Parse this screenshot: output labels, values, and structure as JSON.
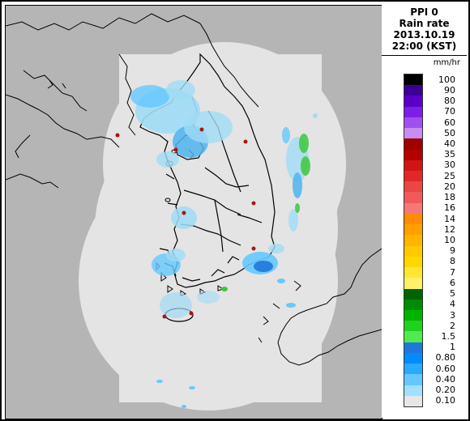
{
  "header": {
    "line1": "PPI 0",
    "line2": "Rain rate",
    "line3": "2013.10.19",
    "line4": "22:00 (KST)"
  },
  "legend": {
    "unit": "mm/hr",
    "levels": [
      {
        "label": "100",
        "color": "#000000"
      },
      {
        "label": "90",
        "color": "#3c0096"
      },
      {
        "label": "80",
        "color": "#5a00c8"
      },
      {
        "label": "70",
        "color": "#7d1ee6"
      },
      {
        "label": "60",
        "color": "#a050f0"
      },
      {
        "label": "50",
        "color": "#c88cf5"
      },
      {
        "label": "40",
        "color": "#a00000"
      },
      {
        "label": "35",
        "color": "#b40000"
      },
      {
        "label": "30",
        "color": "#d21414"
      },
      {
        "label": "25",
        "color": "#e12828"
      },
      {
        "label": "20",
        "color": "#eb4646"
      },
      {
        "label": "18",
        "color": "#f05a5a"
      },
      {
        "label": "16",
        "color": "#f57878"
      },
      {
        "label": "14",
        "color": "#ff8c00"
      },
      {
        "label": "12",
        "color": "#ffa000"
      },
      {
        "label": "10",
        "color": "#ffb400"
      },
      {
        "label": "9",
        "color": "#ffc800"
      },
      {
        "label": "8",
        "color": "#ffd700"
      },
      {
        "label": "7",
        "color": "#ffe632"
      },
      {
        "label": "6",
        "color": "#fff064"
      },
      {
        "label": "5",
        "color": "#006400"
      },
      {
        "label": "4",
        "color": "#008c00"
      },
      {
        "label": "3",
        "color": "#00b400"
      },
      {
        "label": "2",
        "color": "#1ed21e"
      },
      {
        "label": "1.5",
        "color": "#50eb50"
      },
      {
        "label": "1",
        "color": "#1e78dc"
      },
      {
        "label": "0.80",
        "color": "#008cff"
      },
      {
        "label": "0.60",
        "color": "#28aaff"
      },
      {
        "label": "0.40",
        "color": "#64c8ff"
      },
      {
        "label": "0.20",
        "color": "#a0e1ff"
      },
      {
        "label": "0.10",
        "color": "#e6e6e6"
      }
    ]
  },
  "colors": {
    "background": "#b5b5b5",
    "coverage": "#e4e4e4",
    "rain_light": "#a0dcf5",
    "rain_medium": "#50b4ee",
    "rain_heavy": "#1e78dc",
    "rain_green": "#3cc83c",
    "site_marker": "#aa1414",
    "coastline": "#000000"
  }
}
